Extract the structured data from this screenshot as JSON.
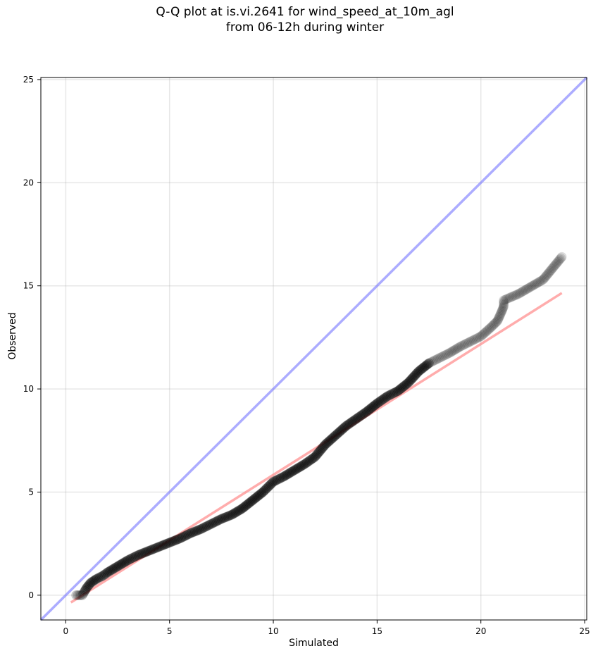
{
  "chart_data": {
    "type": "scatter",
    "title_lines": [
      "Q-Q plot at is.vi.2641 for wind_speed_at_10m_agl",
      "from 06-12h during winter"
    ],
    "xlabel": "Simulated",
    "ylabel": "Observed",
    "xlim": [
      -1.2,
      25.1
    ],
    "ylim": [
      -1.2,
      25.1
    ],
    "x_ticks": [
      0,
      5,
      10,
      15,
      20,
      25
    ],
    "y_ticks": [
      0,
      5,
      10,
      15,
      20,
      25
    ],
    "grid": true,
    "series": [
      {
        "kind": "points",
        "color": "#000000",
        "data": [
          [
            0.5,
            0.0
          ],
          [
            0.65,
            0.0
          ],
          [
            0.8,
            0.0
          ],
          [
            1.0,
            0.35
          ],
          [
            1.2,
            0.6
          ],
          [
            1.5,
            0.8
          ],
          [
            1.8,
            0.95
          ],
          [
            2.0,
            1.1
          ],
          [
            2.5,
            1.4
          ],
          [
            3.0,
            1.7
          ],
          [
            3.5,
            1.95
          ],
          [
            4.0,
            2.15
          ],
          [
            4.5,
            2.35
          ],
          [
            5.0,
            2.55
          ],
          [
            5.5,
            2.75
          ],
          [
            6.0,
            3.0
          ],
          [
            6.5,
            3.2
          ],
          [
            7.0,
            3.45
          ],
          [
            7.5,
            3.7
          ],
          [
            8.0,
            3.9
          ],
          [
            8.5,
            4.2
          ],
          [
            9.0,
            4.6
          ],
          [
            9.5,
            5.0
          ],
          [
            10.0,
            5.5
          ],
          [
            10.5,
            5.75
          ],
          [
            11.0,
            6.05
          ],
          [
            11.5,
            6.35
          ],
          [
            12.0,
            6.7
          ],
          [
            12.5,
            7.3
          ],
          [
            13.0,
            7.75
          ],
          [
            13.5,
            8.2
          ],
          [
            14.0,
            8.55
          ],
          [
            14.5,
            8.9
          ],
          [
            15.0,
            9.3
          ],
          [
            15.5,
            9.65
          ],
          [
            16.0,
            9.9
          ],
          [
            16.5,
            10.3
          ],
          [
            17.0,
            10.85
          ],
          [
            17.5,
            11.25
          ],
          [
            18.0,
            11.5
          ],
          [
            18.5,
            11.75
          ],
          [
            19.0,
            12.05
          ],
          [
            19.5,
            12.3
          ],
          [
            20.0,
            12.55
          ],
          [
            20.5,
            13.0
          ],
          [
            20.8,
            13.3
          ],
          [
            21.0,
            13.75
          ],
          [
            21.1,
            14.0
          ],
          [
            21.1,
            14.3
          ],
          [
            21.8,
            14.6
          ],
          [
            23.0,
            15.3
          ],
          [
            23.9,
            16.4
          ]
        ]
      },
      {
        "kind": "fit-line",
        "color": "#ff8080",
        "data": [
          [
            0.25,
            -0.35
          ],
          [
            23.9,
            14.65
          ]
        ]
      },
      {
        "kind": "identity-line",
        "color": "#8080ff",
        "data": [
          [
            -1.2,
            -1.2
          ],
          [
            25.1,
            25.1
          ]
        ]
      }
    ]
  }
}
